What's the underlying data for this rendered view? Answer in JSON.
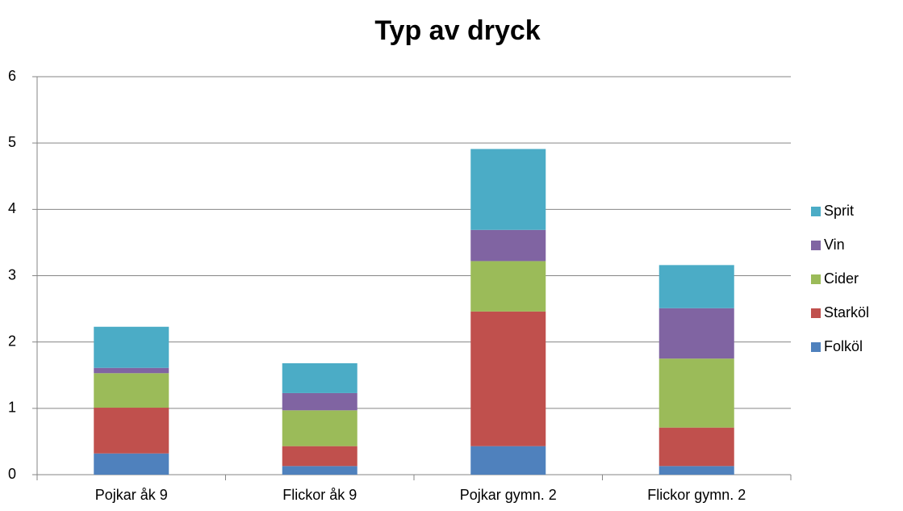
{
  "chart_data": {
    "type": "stacked_bar",
    "title": "Typ av dryck",
    "categories": [
      "Pojkar åk 9",
      "Flickor åk 9",
      "Pojkar gymn. 2",
      "Flickor gymn. 2"
    ],
    "series": [
      {
        "name": "Folköl",
        "color": "#4f81bd",
        "values": [
          0.32,
          0.13,
          0.43,
          0.13
        ]
      },
      {
        "name": "Starköl",
        "color": "#c0504d",
        "values": [
          0.69,
          0.3,
          2.03,
          0.58
        ]
      },
      {
        "name": "Cider",
        "color": "#9bbb59",
        "values": [
          0.52,
          0.54,
          0.76,
          1.04
        ]
      },
      {
        "name": "Vin",
        "color": "#8064a2",
        "values": [
          0.08,
          0.26,
          0.47,
          0.76
        ]
      },
      {
        "name": "Sprit",
        "color": "#4bacc6",
        "values": [
          0.62,
          0.45,
          1.22,
          0.65
        ]
      }
    ],
    "ylim": [
      0,
      6
    ],
    "yticks": [
      0,
      1,
      2,
      3,
      4,
      5,
      6
    ],
    "grid": true,
    "legend": "right"
  }
}
